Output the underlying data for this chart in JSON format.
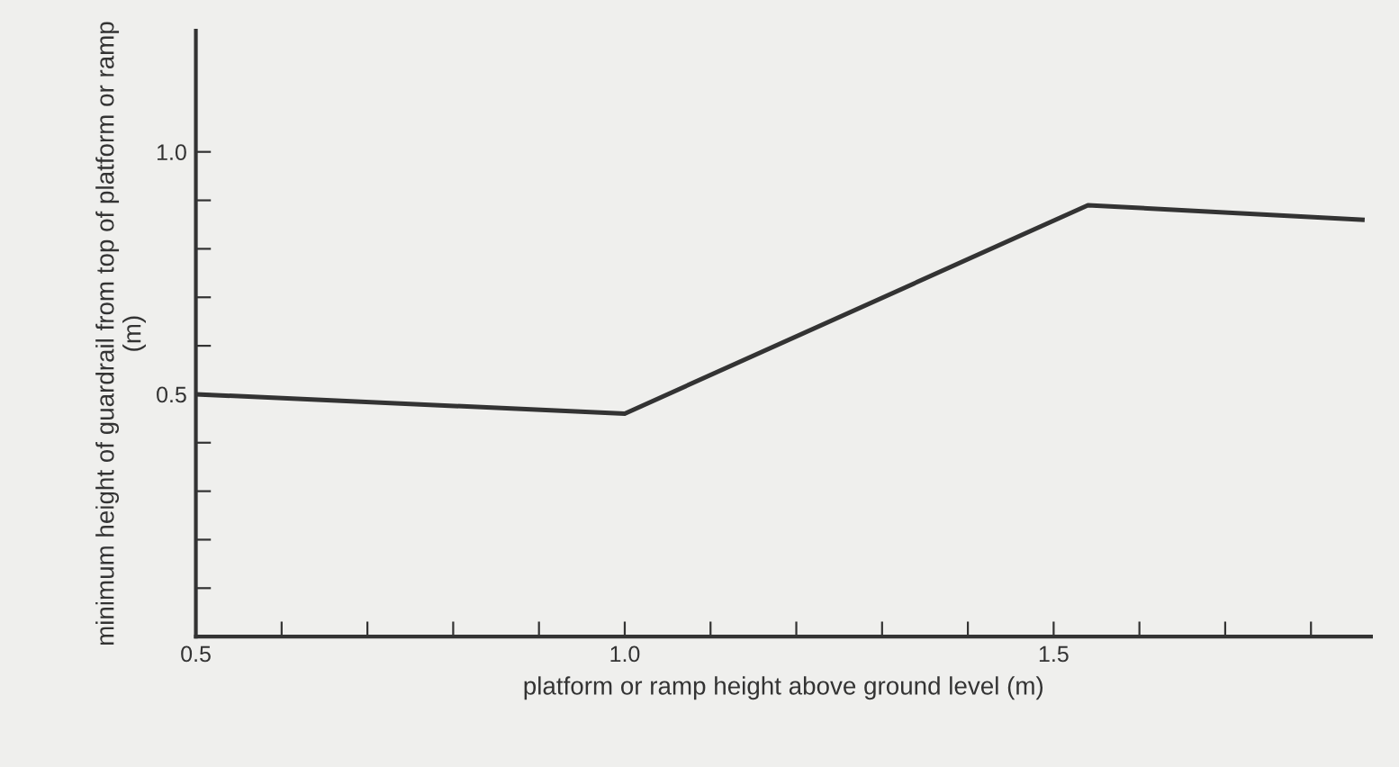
{
  "chart_data": {
    "type": "line",
    "xlabel": "platform or ramp height above ground level (m)",
    "ylabel": "minimum height of guardrail from top of platform or ramp (m)",
    "x": [
      0.5,
      1.0,
      1.54,
      1.86
    ],
    "series": [
      {
        "color": "#333333",
        "values": [
          0.5,
          0.46,
          0.89,
          0.86
        ]
      }
    ],
    "xlim": [
      0.5,
      1.87
    ],
    "ylim": [
      0,
      1.25
    ],
    "xticks": [
      0.5,
      {
        "value": 0.6,
        "label": null
      },
      {
        "value": 0.7,
        "label": null
      },
      {
        "value": 0.8,
        "label": null
      },
      {
        "value": 0.9,
        "label": null
      },
      {
        "value": 1.0,
        "label": "1.0"
      },
      {
        "value": 1.1,
        "label": null
      },
      {
        "value": 1.2,
        "label": null
      },
      {
        "value": 1.3,
        "label": null
      },
      {
        "value": 1.4,
        "label": null
      },
      1.5,
      {
        "value": 1.6,
        "label": null
      },
      {
        "value": 1.7,
        "label": null
      },
      {
        "value": 1.8,
        "label": null
      }
    ],
    "yticks": [
      {
        "value": 0.1,
        "label": null
      },
      {
        "value": 0.2,
        "label": null
      },
      {
        "value": 0.3,
        "label": null
      },
      {
        "value": 0.4,
        "label": null
      },
      0.5,
      {
        "value": 0.6,
        "label": null
      },
      {
        "value": 0.7,
        "label": null
      },
      {
        "value": 0.8,
        "label": null
      },
      {
        "value": 0.9,
        "label": null
      },
      {
        "value": 1.0,
        "label": "1.0"
      }
    ],
    "grid": false,
    "marker": "none",
    "line_style": "solid"
  }
}
